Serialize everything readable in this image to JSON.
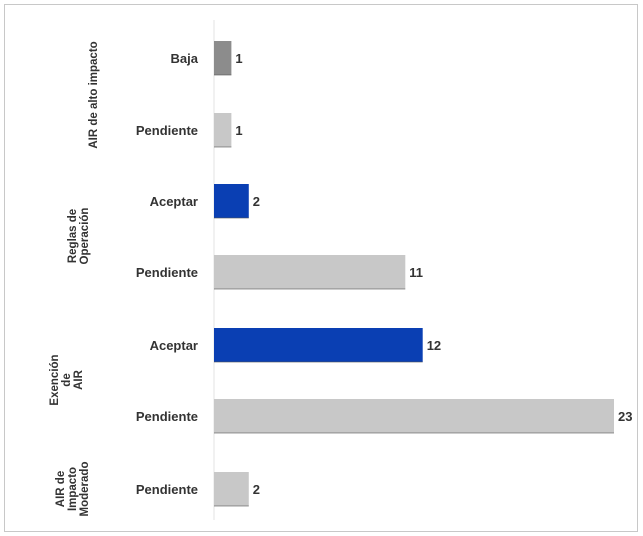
{
  "chart_data": {
    "type": "bar",
    "orientation": "horizontal",
    "title": "",
    "xlabel": "",
    "ylabel": "",
    "xlim": [
      0,
      23
    ],
    "grid": false,
    "legend": "none",
    "groups": [
      {
        "label": [
          "AIR de alto impacto"
        ],
        "items": [
          {
            "category": "Baja",
            "value": 1,
            "color": "#8c8c8c"
          },
          {
            "category": "Pendiente",
            "value": 1,
            "color": "#c8c8c8"
          }
        ]
      },
      {
        "label": [
          "Reglas de",
          "Operación"
        ],
        "items": [
          {
            "category": "Aceptar",
            "value": 2,
            "color": "#0a3fb3"
          },
          {
            "category": "Pendiente",
            "value": 11,
            "color": "#c8c8c8"
          }
        ]
      },
      {
        "label": [
          "Exención",
          "de",
          "AIR"
        ],
        "items": [
          {
            "category": "Aceptar",
            "value": 12,
            "color": "#0a3fb3"
          },
          {
            "category": "Pendiente",
            "value": 23,
            "color": "#c8c8c8"
          }
        ]
      },
      {
        "label": [
          "AIR de",
          "Impacto",
          "Moderado"
        ],
        "items": [
          {
            "category": "Pendiente",
            "value": 2,
            "color": "#c8c8c8"
          }
        ]
      }
    ]
  }
}
